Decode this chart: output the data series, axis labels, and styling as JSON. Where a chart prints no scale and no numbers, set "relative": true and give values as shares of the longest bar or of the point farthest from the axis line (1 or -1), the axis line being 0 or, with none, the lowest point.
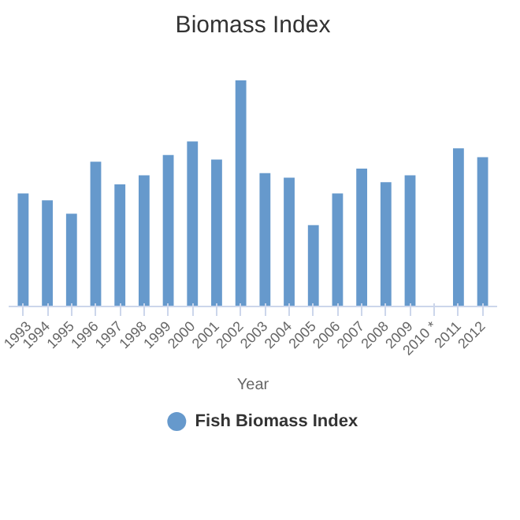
{
  "chart_data": {
    "type": "bar",
    "title": "Biomass Index",
    "xlabel": "Year",
    "categories": [
      "1993",
      "1994",
      "1995",
      "1996",
      "1997",
      "1998",
      "1999",
      "2000",
      "2001",
      "2002",
      "2003",
      "2004",
      "2005",
      "2006",
      "2007",
      "2008",
      "2009",
      "2010 *",
      "2011",
      "2012"
    ],
    "series": [
      {
        "name": "Fish Biomass Index",
        "color": "#6699cc",
        "values": [
          0.5,
          0.47,
          0.41,
          0.64,
          0.54,
          0.58,
          0.67,
          0.73,
          0.65,
          1,
          0.59,
          0.57,
          0.36,
          0.5,
          0.61,
          0.55,
          0.58,
          null,
          0.7,
          0.66
        ]
      }
    ],
    "relative": true,
    "legend": "bottom"
  }
}
